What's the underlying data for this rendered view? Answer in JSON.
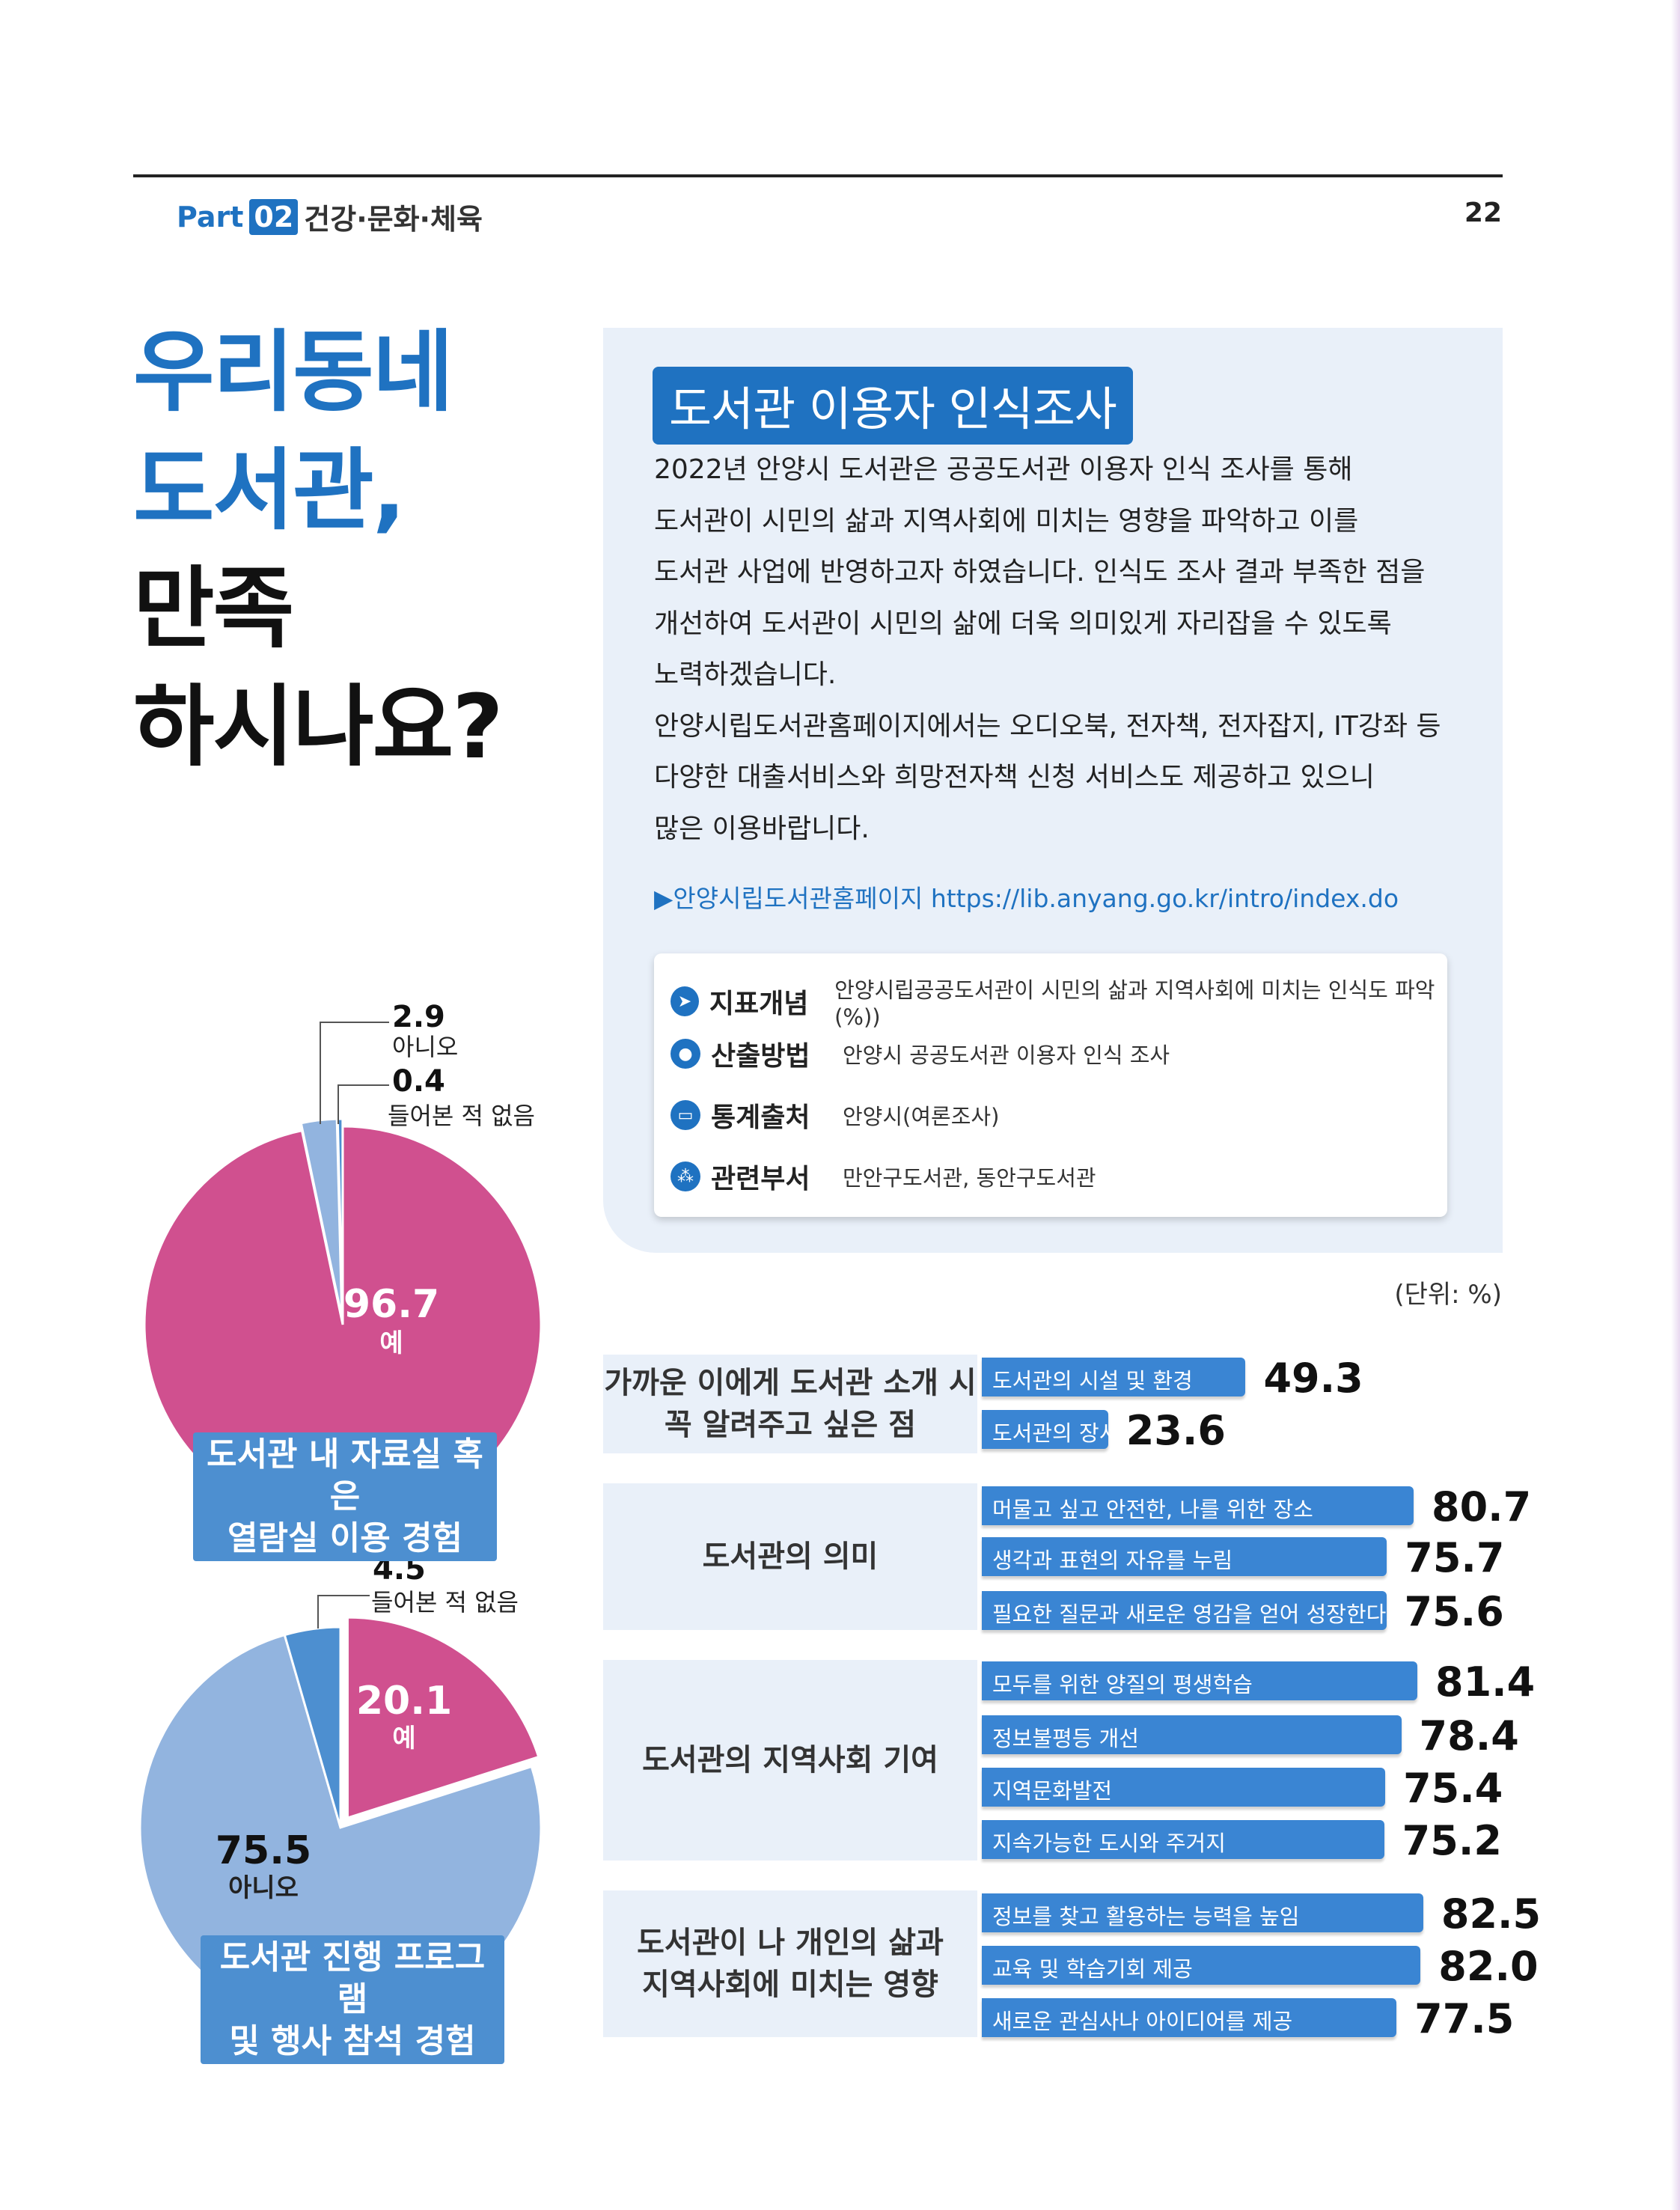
{
  "header": {
    "part_word": "Part",
    "part_num": "02",
    "section": "건강·문화·체육",
    "page_number": "22"
  },
  "title": {
    "line1": "우리동네",
    "line2": "도서관,",
    "line3": "만족",
    "line4": "하시나요?"
  },
  "panel": {
    "title": "도서관 이용자 인식조사",
    "paragraph1": [
      "2022년 안양시 도서관은 공공도서관 이용자 인식 조사를 통해",
      "도서관이 시민의 삶과 지역사회에 미치는 영향을 파악하고 이를",
      "도서관 사업에 반영하고자 하였습니다. 인식도 조사 결과 부족한 점을",
      "개선하여 도서관이 시민의 삶에 더욱 의미있게 자리잡을 수 있도록",
      "노력하겠습니다."
    ],
    "paragraph2": [
      "안양시립도서관홈페이지에서는 오디오북, 전자책, 전자잡지, IT강좌 등",
      "다양한 대출서비스와 희망전자책 신청 서비스도 제공하고 있으니",
      "많은 이용바랍니다."
    ],
    "link": "▶안양시립도서관홈페이지 https://lib.anyang.go.kr/intro/index.do",
    "meta": [
      {
        "icon": "paper-plane-icon",
        "glyph": "➤",
        "key": "지표개념",
        "value": "안양시립공공도서관이 시민의 삶과 지역사회에 미치는 인식도 파악(%))"
      },
      {
        "icon": "chat-icon",
        "glyph": "●",
        "key": "산출방법",
        "value": "안양시 공공도서관 이용자 인식 조사"
      },
      {
        "icon": "monitor-icon",
        "glyph": "▭",
        "key": "통계출처",
        "value": "안양시(여론조사)"
      },
      {
        "icon": "people-icon",
        "glyph": "⁂",
        "key": "관련부서",
        "value": "만안구도서관, 동안구도서관"
      }
    ]
  },
  "colors": {
    "brand_blue": "#1f72c1",
    "bar_blue": "#3a85d3",
    "pie_pink": "#d0508f",
    "pie_light_blue": "#92b4df",
    "pie_mid_blue": "#4d8fd0",
    "panel_bg": "#e9f0f9"
  },
  "chart_data": [
    {
      "type": "pie",
      "title": "도서관 내 자료실 혹은 열람실 이용 경험",
      "slices": [
        {
          "label": "예",
          "value": 96.7
        },
        {
          "label": "아니오",
          "value": 2.9
        },
        {
          "label": "들어본 적 없음",
          "value": 0.4
        }
      ],
      "value_labels": [
        "96.7",
        "2.9",
        "0.4"
      ]
    },
    {
      "type": "pie",
      "title": "도서관 진행 프로그램 및 행사 참석 경험",
      "slices": [
        {
          "label": "예",
          "value": 20.1
        },
        {
          "label": "아니오",
          "value": 75.5
        },
        {
          "label": "들어본 적 없음",
          "value": 4.5
        }
      ],
      "value_labels": [
        "20.1",
        "75.5",
        "4.5"
      ]
    },
    {
      "type": "bar",
      "unit_label": "(단위: %)",
      "groups": [
        {
          "label": [
            "가까운 이에게 도서관 소개 시",
            "꼭 알려주고 싶은 점"
          ],
          "items": [
            {
              "label": "도서관의 시설 및 환경",
              "value": 49.3,
              "value_text": "49.3"
            },
            {
              "label": "도서관의 장서 구비 상태",
              "value": 23.6,
              "value_text": "23.6"
            }
          ]
        },
        {
          "label": [
            "도서관의 의미"
          ],
          "items": [
            {
              "label": "머물고 싶고 안전한, 나를 위한 장소",
              "value": 80.7,
              "value_text": "80.7"
            },
            {
              "label": "생각과 표현의 자유를 누림",
              "value": 75.7,
              "value_text": "75.7"
            },
            {
              "label": "필요한 질문과 새로운 영감을 얻어 성장한다고 느낌",
              "value": 75.6,
              "value_text": "75.6"
            }
          ]
        },
        {
          "label": [
            "도서관의 지역사회 기여"
          ],
          "items": [
            {
              "label": "모두를 위한 양질의 평생학습",
              "value": 81.4,
              "value_text": "81.4"
            },
            {
              "label": "정보불평등 개선",
              "value": 78.4,
              "value_text": "78.4"
            },
            {
              "label": "지역문화발전",
              "value": 75.4,
              "value_text": "75.4"
            },
            {
              "label": "지속가능한 도시와 주거지",
              "value": 75.2,
              "value_text": "75.2"
            }
          ]
        },
        {
          "label": [
            "도서관이 나 개인의 삶과",
            "지역사회에 미치는 영향"
          ],
          "items": [
            {
              "label": "정보를 찾고 활용하는 능력을 높임",
              "value": 82.5,
              "value_text": "82.5"
            },
            {
              "label": "교육 및 학습기회 제공",
              "value": 82.0,
              "value_text": "82.0"
            },
            {
              "label": "새로운 관심사나 아이디어를 제공",
              "value": 77.5,
              "value_text": "77.5"
            }
          ]
        }
      ]
    }
  ]
}
